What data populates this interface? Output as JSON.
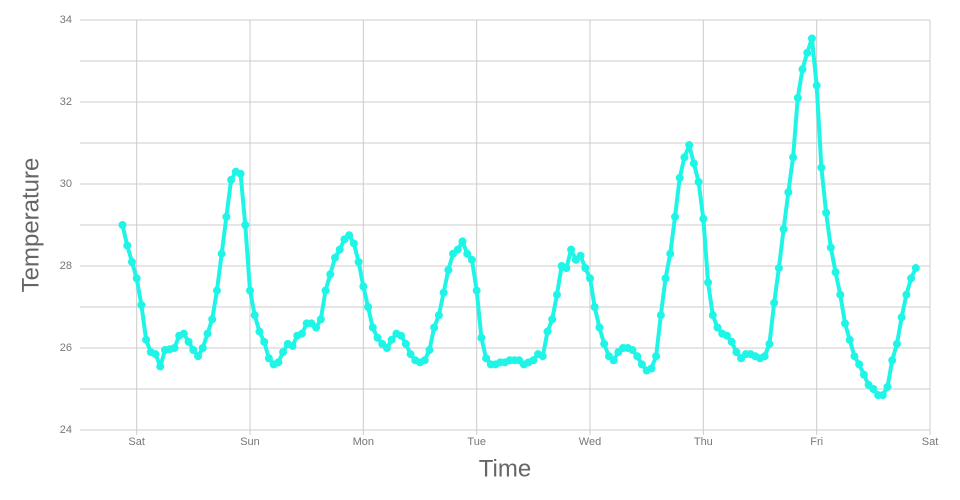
{
  "chart_data": {
    "type": "line",
    "xlabel": "Time",
    "ylabel": "Temperature",
    "color": "#1ff5e6",
    "x": [
      -3,
      -2,
      -1,
      0,
      1,
      2,
      3,
      4,
      5,
      6,
      7,
      8,
      9,
      10,
      11,
      12,
      13,
      14,
      15,
      16,
      17,
      18,
      19,
      20,
      21,
      22,
      23,
      24,
      25,
      26,
      27,
      28,
      29,
      30,
      31,
      32,
      33,
      34,
      35,
      36,
      37,
      38,
      39,
      40,
      41,
      42,
      43,
      44,
      45,
      46,
      47,
      48,
      49,
      50,
      51,
      52,
      53,
      54,
      55,
      56,
      57,
      58,
      59,
      60,
      61,
      62,
      63,
      64,
      65,
      66,
      67,
      68,
      69,
      70,
      71,
      72,
      73,
      74,
      75,
      76,
      77,
      78,
      79,
      80,
      81,
      82,
      83,
      84,
      85,
      86,
      87,
      88,
      89,
      90,
      91,
      92,
      93,
      94,
      95,
      96,
      97,
      98,
      99,
      100,
      101,
      102,
      103,
      104,
      105,
      106,
      107,
      108,
      109,
      110,
      111,
      112,
      113,
      114,
      115,
      116,
      117,
      118,
      119,
      120,
      121,
      122,
      123,
      124,
      125,
      126,
      127,
      128,
      129,
      130,
      131,
      132,
      133,
      134,
      135,
      136,
      137,
      138,
      139,
      140,
      141,
      142,
      143,
      144,
      145,
      146,
      147,
      148,
      149,
      150,
      151,
      152,
      153,
      154,
      155,
      156,
      157,
      158,
      159,
      160,
      161,
      162,
      163,
      164,
      165
    ],
    "values": [
      29.0,
      28.5,
      28.1,
      27.7,
      27.05,
      26.2,
      25.9,
      25.85,
      25.55,
      25.95,
      25.97,
      26.0,
      26.3,
      26.35,
      26.15,
      25.95,
      25.8,
      26.0,
      26.35,
      26.7,
      27.4,
      28.3,
      29.2,
      30.1,
      30.3,
      30.25,
      29.0,
      27.4,
      26.8,
      26.4,
      26.15,
      25.75,
      25.6,
      25.65,
      25.9,
      26.1,
      26.05,
      26.3,
      26.35,
      26.6,
      26.6,
      26.5,
      26.7,
      27.4,
      27.8,
      28.2,
      28.4,
      28.65,
      28.75,
      28.55,
      28.1,
      27.5,
      27.0,
      26.5,
      26.25,
      26.1,
      26.0,
      26.2,
      26.35,
      26.3,
      26.1,
      25.85,
      25.7,
      25.65,
      25.7,
      25.95,
      26.5,
      26.8,
      27.35,
      27.9,
      28.3,
      28.4,
      28.6,
      28.3,
      28.15,
      27.4,
      26.25,
      25.75,
      25.6,
      25.6,
      25.65,
      25.65,
      25.7,
      25.7,
      25.7,
      25.6,
      25.65,
      25.7,
      25.85,
      25.8,
      26.4,
      26.7,
      27.3,
      28.0,
      27.95,
      28.4,
      28.15,
      28.25,
      27.95,
      27.7,
      27.0,
      26.5,
      26.1,
      25.8,
      25.7,
      25.9,
      26.0,
      26.0,
      25.95,
      25.8,
      25.6,
      25.45,
      25.5,
      25.8,
      26.8,
      27.7,
      28.3,
      29.2,
      30.15,
      30.65,
      30.95,
      30.5,
      30.05,
      29.15,
      27.6,
      26.8,
      26.5,
      26.35,
      26.3,
      26.15,
      25.9,
      25.75,
      25.85,
      25.85,
      25.8,
      25.75,
      25.8,
      26.1,
      27.1,
      27.95,
      28.9,
      29.8,
      30.65,
      32.1,
      32.8,
      33.2,
      33.55,
      32.4,
      30.4,
      29.3,
      28.45,
      27.85,
      27.3,
      26.6,
      26.2,
      25.8,
      25.6,
      25.35,
      25.1,
      25.0,
      24.85,
      24.85,
      25.05,
      25.7,
      26.1,
      26.75,
      27.3,
      27.7,
      27.95
    ],
    "xlim": [
      -12,
      168
    ],
    "xticks": [
      {
        "value": 0,
        "label": "Sat"
      },
      {
        "value": 24,
        "label": "Sun"
      },
      {
        "value": 48,
        "label": "Mon"
      },
      {
        "value": 72,
        "label": "Tue"
      },
      {
        "value": 96,
        "label": "Wed"
      },
      {
        "value": 120,
        "label": "Thu"
      },
      {
        "value": 144,
        "label": "Fri"
      },
      {
        "value": 168,
        "label": "Sat"
      }
    ],
    "ylim": [
      24,
      34
    ],
    "yticks": [
      24,
      26,
      28,
      30,
      32,
      34
    ],
    "yminor": [
      25,
      27,
      29,
      31,
      33
    ],
    "grid": true
  }
}
